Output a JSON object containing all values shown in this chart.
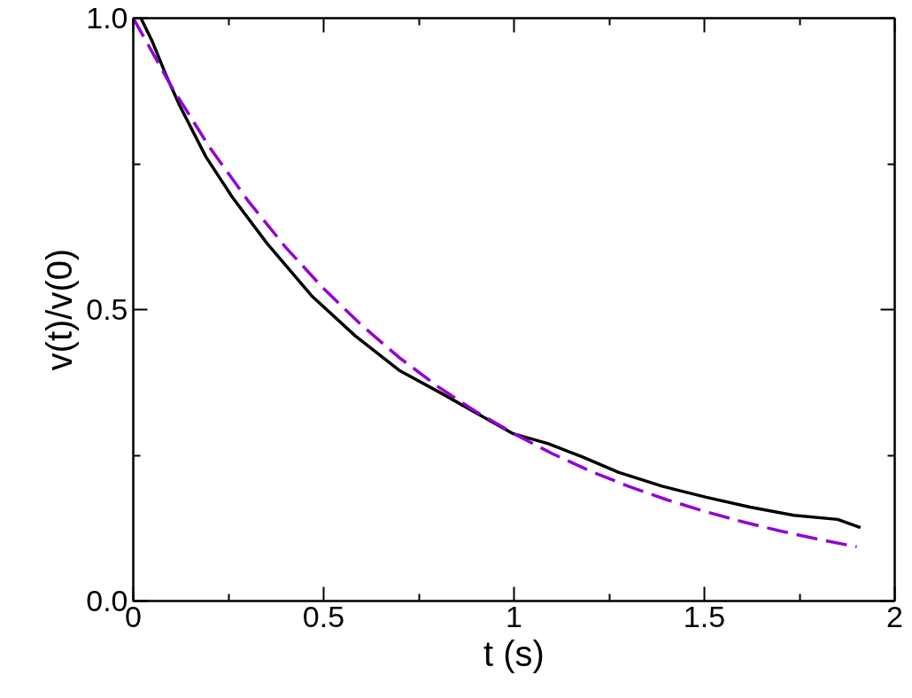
{
  "chart_data": {
    "type": "line",
    "xlabel": "t (s)",
    "ylabel": "v(t)/v(0)",
    "xlim": [
      0,
      2
    ],
    "ylim": [
      0,
      1
    ],
    "xticks": [
      0,
      {
        "value": 0.25,
        "label": null
      },
      0.5,
      {
        "value": 0.75,
        "label": null
      },
      1,
      {
        "value": 1.25,
        "label": null
      },
      1.5,
      {
        "value": 1.75,
        "label": null
      },
      2
    ],
    "yticks": [
      {
        "value": 0,
        "label": "0.0"
      },
      {
        "value": 0.25,
        "label": null
      },
      {
        "value": 0.5,
        "label": "0.5"
      },
      {
        "value": 0.75,
        "label": null
      },
      {
        "value": 1,
        "label": "1.0"
      }
    ],
    "grid": false,
    "series": [
      {
        "color": "#000000",
        "line_style": "solid",
        "x": [
          0.02,
          0.05,
          0.0875,
          0.122,
          0.191,
          0.26,
          0.352,
          0.468,
          0.583,
          0.698,
          0.813,
          0.905,
          0.998,
          1.09,
          1.18,
          1.274,
          1.389,
          1.505,
          1.62,
          1.735,
          1.85,
          1.91
        ],
        "values": [
          1.0,
          0.96,
          0.9,
          0.85,
          0.762,
          0.693,
          0.613,
          0.524,
          0.455,
          0.396,
          0.355,
          0.321,
          0.287,
          0.27,
          0.247,
          0.221,
          0.197,
          0.178,
          0.161,
          0.147,
          0.14,
          0.126
        ]
      },
      {
        "color": "#9400d3",
        "line_style": "dashed",
        "x": [
          0,
          0.1,
          0.2,
          0.3,
          0.4,
          0.5,
          0.6,
          0.7,
          0.8,
          0.9,
          1.0,
          1.1,
          1.2,
          1.3,
          1.4,
          1.5,
          1.6,
          1.7,
          1.8,
          1.9
        ],
        "values": [
          1.0,
          0.883,
          0.779,
          0.688,
          0.607,
          0.536,
          0.473,
          0.417,
          0.368,
          0.325,
          0.287,
          0.253,
          0.223,
          0.197,
          0.174,
          0.154,
          0.136,
          0.12,
          0.106,
          0.093
        ]
      }
    ]
  }
}
